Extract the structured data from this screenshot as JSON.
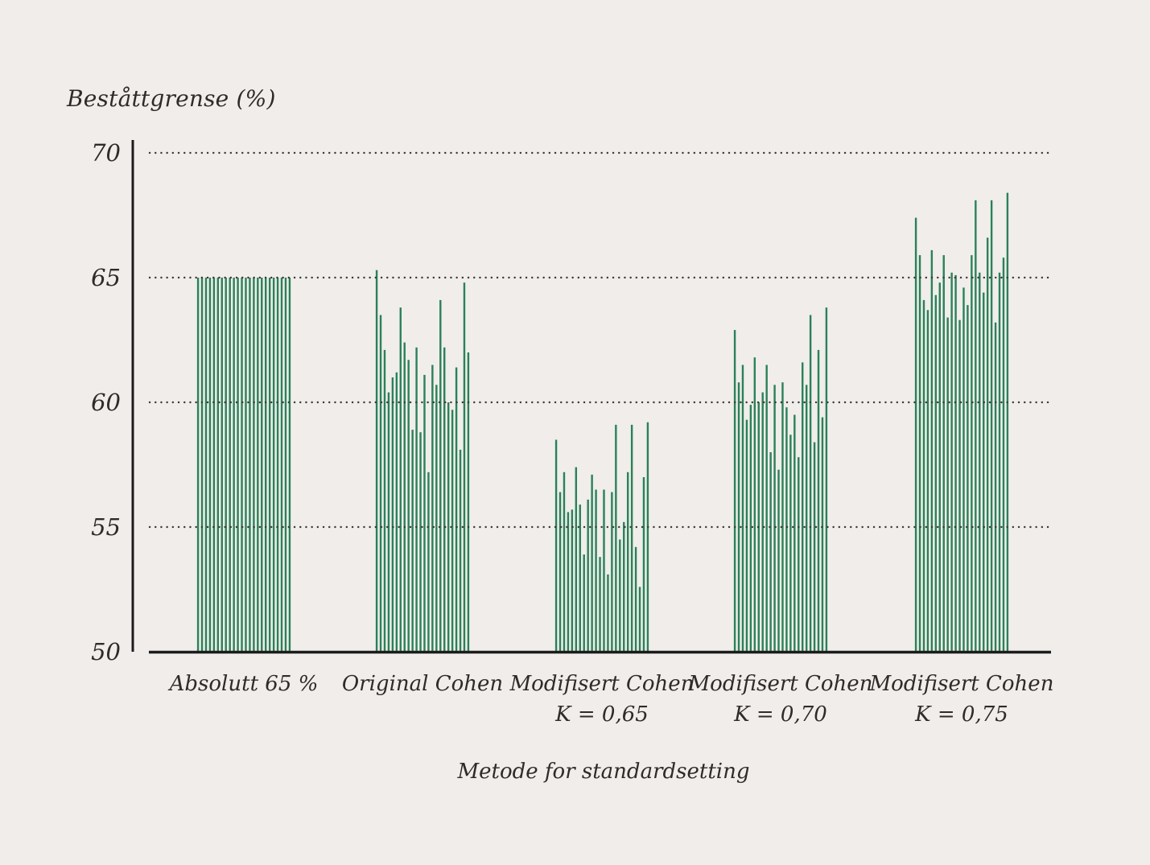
{
  "figure": {
    "y_axis_title": "Beståttgrense (%)",
    "x_axis_title": "Metode for standardsetting"
  },
  "chart_data": {
    "type": "bar",
    "title": "Beståttgrense (%)",
    "xlabel": "Metode for standardsetting",
    "ylabel": "Beståttgrense (%)",
    "ylim": [
      50,
      70
    ],
    "yticks": [
      50,
      55,
      60,
      65,
      70
    ],
    "gridline_values": [
      55,
      60,
      65,
      70
    ],
    "grid_style": "dotted-horizontal",
    "legend": "none",
    "groups": [
      {
        "label": "Absolutt 65 %",
        "sublabel": "",
        "values": [
          65.0,
          65.0,
          65.0,
          65.0,
          65.0,
          65.0,
          65.0,
          65.0,
          65.0,
          65.0,
          65.0,
          65.0,
          65.0,
          65.0,
          65.0,
          65.0,
          65.0,
          65.0,
          65.0,
          65.0,
          65.0,
          65.0,
          65.0,
          65.0
        ]
      },
      {
        "label": "Original Cohen",
        "sublabel": "",
        "values": [
          65.3,
          63.5,
          62.1,
          60.4,
          61.0,
          61.2,
          63.8,
          62.4,
          61.7,
          58.9,
          62.2,
          58.8,
          61.1,
          57.2,
          61.5,
          60.7,
          64.1,
          62.2,
          60.0,
          59.7,
          61.4,
          58.1,
          64.8,
          62.0
        ]
      },
      {
        "label": "Modifisert Cohen",
        "sublabel": "K = 0,65",
        "values": [
          58.5,
          56.4,
          57.2,
          55.6,
          55.7,
          57.4,
          55.9,
          53.9,
          56.1,
          57.1,
          56.5,
          53.8,
          56.5,
          53.1,
          56.4,
          59.1,
          54.5,
          55.2,
          57.2,
          59.1,
          54.2,
          52.6,
          57.0,
          59.2
        ]
      },
      {
        "label": "Modifisert Cohen",
        "sublabel": "K = 0,70",
        "values": [
          62.9,
          60.8,
          61.5,
          59.3,
          59.9,
          61.8,
          60.0,
          60.4,
          61.5,
          58.0,
          60.7,
          57.3,
          60.8,
          59.8,
          58.7,
          59.5,
          57.8,
          61.6,
          60.7,
          63.5,
          58.4,
          62.1,
          59.4,
          63.8
        ]
      },
      {
        "label": "Modifisert Cohen",
        "sublabel": "K = 0,75",
        "values": [
          67.4,
          65.9,
          64.1,
          63.7,
          66.1,
          64.3,
          64.8,
          65.9,
          63.4,
          65.2,
          65.1,
          63.3,
          64.6,
          63.9,
          65.9,
          68.1,
          65.2,
          64.4,
          66.6,
          68.1,
          63.2,
          65.2,
          65.8,
          68.4
        ]
      }
    ]
  },
  "colors": {
    "background": "#F0EDEA",
    "bar": "#2A8158",
    "text": "#2F2B28",
    "grid_dots": "#3A3A3A",
    "axis": "#1C1C1C"
  }
}
